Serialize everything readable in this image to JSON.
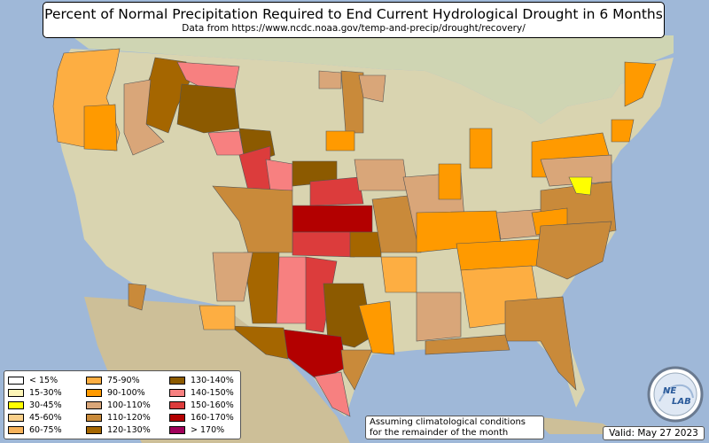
{
  "title": "Percent of Normal Precipitation Required to End Current Hydrological Drought in 6 Months",
  "subtitle": "Data from https://www.ncdc.noaa.gov/temp-and-precip/drought/recovery/",
  "note_line1": "Assuming climatological conditions",
  "note_line2": "for the remainder of the month",
  "valid": "Valid: May 27 2023",
  "logo_text_top": "NE",
  "logo_text_bottom": "LAB",
  "legend": [
    {
      "label": "< 15%",
      "color": "#ffffff"
    },
    {
      "label": "15-30%",
      "color": "#fdf5b7"
    },
    {
      "label": "30-45%",
      "color": "#ffff00"
    },
    {
      "label": "45-60%",
      "color": "#f9d08a"
    },
    {
      "label": "60-75%",
      "color": "#f7b25a"
    },
    {
      "label": "75-90%",
      "color": "#fdae42"
    },
    {
      "label": "90-100%",
      "color": "#ff9a00"
    },
    {
      "label": "100-110%",
      "color": "#d9a679"
    },
    {
      "label": "110-120%",
      "color": "#c98a3a"
    },
    {
      "label": "120-130%",
      "color": "#a56600"
    },
    {
      "label": "130-140%",
      "color": "#8c5a00"
    },
    {
      "label": "140-150%",
      "color": "#f78080"
    },
    {
      "label": "150-160%",
      "color": "#dc3c3c"
    },
    {
      "label": "160-170%",
      "color": "#b30000"
    },
    {
      "label": "> 170%",
      "color": "#a0005a"
    }
  ],
  "colors": {
    "ocean": "#9fb8d8",
    "land": "#d9d4b0",
    "canada": "#cfd5b3",
    "mexico": "#cdbf98"
  },
  "regions": [
    {
      "name": "pacific-northwest",
      "bin": 6
    },
    {
      "name": "northern-rockies",
      "bin": 9
    },
    {
      "name": "montana-east",
      "bin": 11
    },
    {
      "name": "idaho",
      "bin": 7
    },
    {
      "name": "wyoming",
      "bin": 11
    },
    {
      "name": "south-dakota",
      "bin": 10
    },
    {
      "name": "nebraska",
      "bin": 12
    },
    {
      "name": "kansas",
      "bin": 13
    },
    {
      "name": "oklahoma",
      "bin": 12
    },
    {
      "name": "texas-central",
      "bin": 13
    },
    {
      "name": "texas-east",
      "bin": 10
    },
    {
      "name": "texas-west",
      "bin": 9
    },
    {
      "name": "texas-south",
      "bin": 11
    },
    {
      "name": "new-mexico-east",
      "bin": 11
    },
    {
      "name": "new-mexico-west",
      "bin": 9
    },
    {
      "name": "colorado",
      "bin": 8
    },
    {
      "name": "arizona-se",
      "bin": 6
    },
    {
      "name": "great-lakes-east",
      "bin": 6
    },
    {
      "name": "midwest",
      "bin": 7
    },
    {
      "name": "ohio-valley",
      "bin": 6
    },
    {
      "name": "tennessee",
      "bin": 6
    },
    {
      "name": "southeast",
      "bin": 7
    },
    {
      "name": "georgia-florida",
      "bin": 8
    },
    {
      "name": "mid-atlantic",
      "bin": 7
    },
    {
      "name": "delmarva",
      "bin": 2
    },
    {
      "name": "new-england",
      "bin": 6
    },
    {
      "name": "louisiana",
      "bin": 6
    },
    {
      "name": "missouri",
      "bin": 8
    },
    {
      "name": "minnesota",
      "bin": 8
    },
    {
      "name": "iowa",
      "bin": 7
    },
    {
      "name": "arkansas",
      "bin": 6
    }
  ]
}
